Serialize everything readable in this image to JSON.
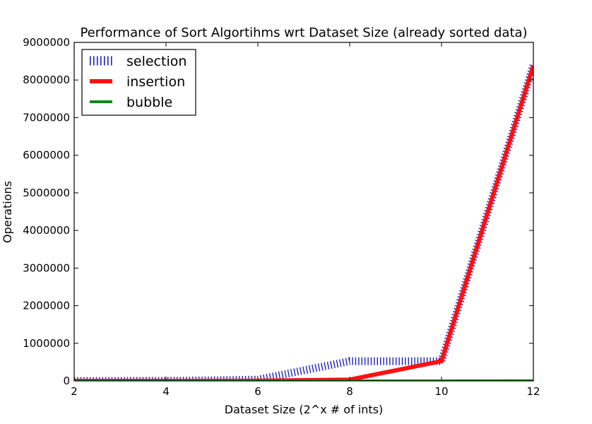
{
  "chart_data": {
    "type": "line",
    "title": "Performance of Sort Algortihms wrt Dataset Size (already sorted data)",
    "xlabel": "Dataset Size (2^x # of ints)",
    "ylabel": "Operations",
    "xlim": [
      2,
      12
    ],
    "ylim": [
      0,
      9000000
    ],
    "xticks": [
      "2",
      "4",
      "6",
      "8",
      "10",
      "12"
    ],
    "yticks": [
      "0",
      "1000000",
      "2000000",
      "3000000",
      "4000000",
      "5000000",
      "6000000",
      "7000000",
      "8000000",
      "9000000"
    ],
    "x": [
      2,
      4,
      6,
      8,
      10,
      12
    ],
    "series": [
      {
        "name": "selection",
        "values": [
          60,
          2000,
          33000,
          525000,
          524000,
          8390000
        ],
        "color": "#1f1fbf",
        "style": "hatched"
      },
      {
        "name": "insertion",
        "values": [
          10,
          150,
          2100,
          33000,
          525000,
          8390000
        ],
        "color": "#ff1010",
        "style": "thick"
      },
      {
        "name": "bubble",
        "values": [
          4,
          16,
          64,
          256,
          1024,
          4096
        ],
        "color": "#118811",
        "style": "solid"
      }
    ],
    "legend_position": "top-left",
    "grid": false
  }
}
